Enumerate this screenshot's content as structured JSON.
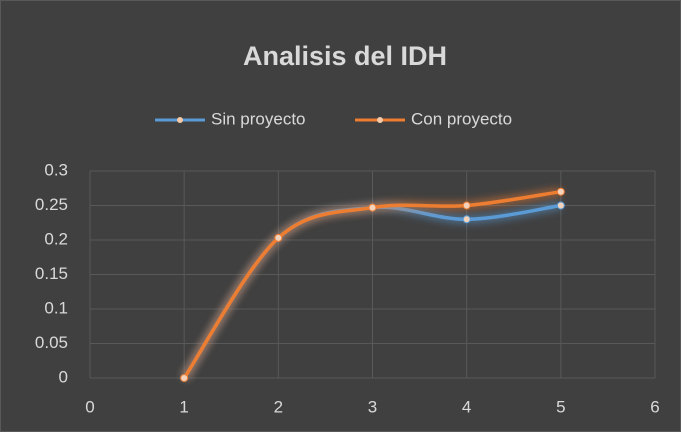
{
  "chart_data": {
    "type": "line",
    "title": "Analisis del  IDH",
    "x": [
      1,
      2,
      3,
      4,
      5
    ],
    "series": [
      {
        "name": "Sin proyecto",
        "color": "#5b9bd5",
        "values": [
          0,
          0.203,
          0.247,
          0.23,
          0.25
        ]
      },
      {
        "name": "Con proyecto",
        "color": "#ed7d31",
        "values": [
          0,
          0.203,
          0.247,
          0.25,
          0.27
        ]
      }
    ],
    "xlim": [
      0,
      6
    ],
    "xticks": [
      0,
      1,
      2,
      3,
      4,
      5,
      6
    ],
    "ylim": [
      0,
      0.3
    ],
    "yticks": [
      0,
      0.05,
      0.1,
      0.15,
      0.2,
      0.25,
      0.3
    ],
    "grid": true,
    "smooth": true,
    "legend": "top"
  }
}
